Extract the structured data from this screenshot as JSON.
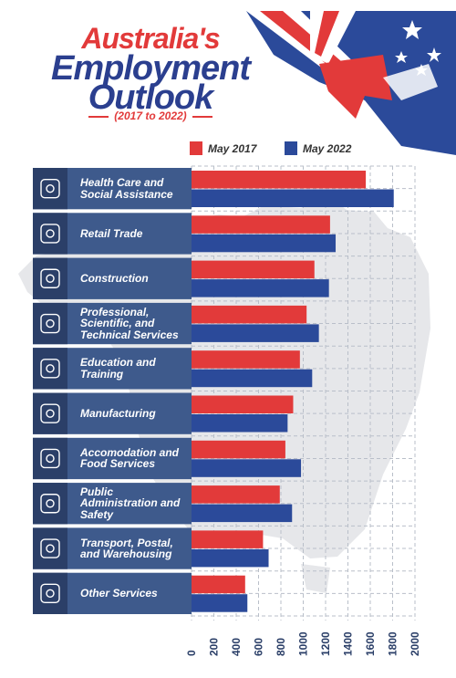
{
  "title": {
    "line1": "Australia's",
    "line2": "Employment",
    "line3": "Outlook",
    "subtitle": "(2017 to 2022)"
  },
  "colors": {
    "may2017": "#e23a3a",
    "may2022": "#2b4a9a",
    "panel": "#3e5a8c",
    "panel_dark": "#2b3f68",
    "grid": "#b9bfc9",
    "map": "#e8e8ea"
  },
  "icons": [
    "hand-heart-icon",
    "shopping-bag-icon",
    "excavator-icon",
    "professional-person-icon",
    "open-book-icon",
    "factory-icon",
    "food-dish-icon",
    "padlock-icon",
    "truck-icon",
    "gear-icon"
  ],
  "chart_data": {
    "type": "bar",
    "orientation": "horizontal",
    "categories": [
      "Health Care and Social Assistance",
      "Retail Trade",
      "Construction",
      "Professional, Scientific, and Technical Services",
      "Education and Training",
      "Manufacturing",
      "Accomodation and Food Services",
      "Public Administration and Safety",
      "Transport, Postal, and Warehousing",
      "Other Services"
    ],
    "series": [
      {
        "name": "May 2017",
        "values": [
          1560,
          1240,
          1100,
          1030,
          970,
          910,
          840,
          790,
          640,
          480
        ]
      },
      {
        "name": "May 2022",
        "values": [
          1810,
          1290,
          1230,
          1140,
          1080,
          860,
          980,
          900,
          690,
          500
        ]
      }
    ],
    "xlim": [
      0,
      2000
    ],
    "xticks": [
      "0",
      "200",
      "400",
      "600",
      "800",
      "1000",
      "1200",
      "1400",
      "1600",
      "1800",
      "2000"
    ],
    "grid": true,
    "legend_position": "top"
  }
}
